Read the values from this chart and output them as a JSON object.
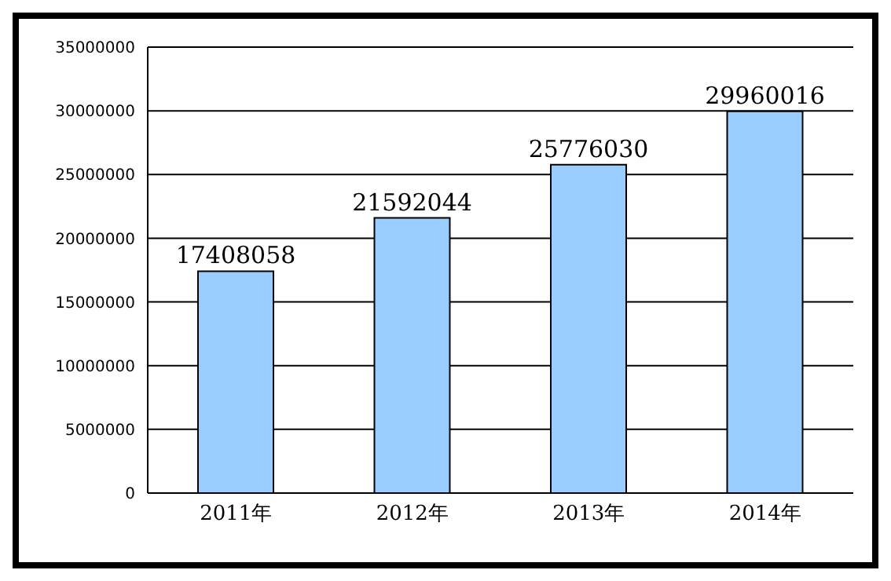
{
  "chart_data": {
    "type": "bar",
    "categories": [
      "2011年",
      "2012年",
      "2013年",
      "2014年"
    ],
    "values": [
      17408058,
      21592044,
      25776030,
      29960016
    ],
    "color": "#99ccff",
    "ylim": [
      0,
      35000000
    ],
    "yticks": [
      0,
      5000000,
      10000000,
      15000000,
      20000000,
      25000000,
      30000000,
      35000000
    ],
    "grid": "y",
    "data_labels": true,
    "legend": false
  }
}
